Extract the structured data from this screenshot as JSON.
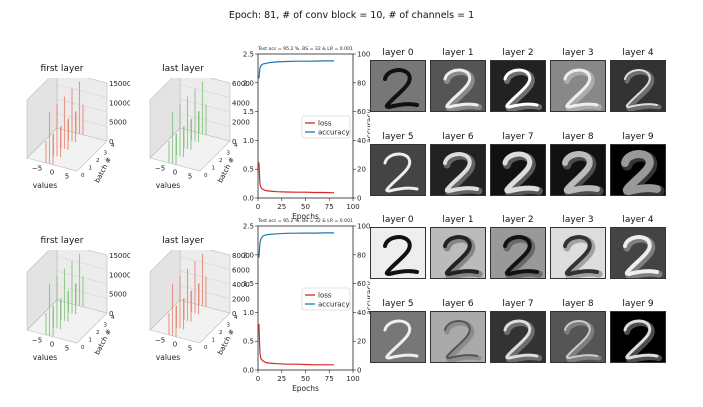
{
  "figure": {
    "title": "Epoch: 81, # of conv block = 10, # of channels = 1"
  },
  "rows": [
    {
      "hist_first": {
        "title": "first layer",
        "xlabel": "values",
        "ylabel": "batch #",
        "xticks": [
          "−5",
          "0",
          "5"
        ],
        "yticks": [
          "0",
          "1",
          "2",
          "3",
          "4"
        ],
        "zticks": [
          "15000",
          "10000",
          "5000",
          "0"
        ],
        "color": "#e8826f"
      },
      "hist_last": {
        "title": "last layer",
        "xlabel": "values",
        "ylabel": "batch #",
        "xticks": [
          "−5",
          "0",
          "5"
        ],
        "yticks": [
          "0",
          "1",
          "2",
          "3",
          "4"
        ],
        "zticks": [
          "6000",
          "4000",
          "2000",
          "0"
        ],
        "color": "#7fc27a"
      },
      "tiles_top_labels": [
        "layer 0",
        "layer 1",
        "layer 2",
        "layer 3",
        "layer 4"
      ],
      "tiles_bottom_labels": [
        "layer 5",
        "layer 6",
        "layer 7",
        "layer 8",
        "layer 9"
      ]
    },
    {
      "hist_first": {
        "title": "first layer",
        "xlabel": "values",
        "ylabel": "batch #",
        "xticks": [
          "−5",
          "0",
          "5"
        ],
        "yticks": [
          "0",
          "1",
          "2",
          "3",
          "4"
        ],
        "zticks": [
          "15000",
          "10000",
          "5000",
          "0"
        ],
        "color": "#7fc27a"
      },
      "hist_last": {
        "title": "last layer",
        "xlabel": "values",
        "ylabel": "batch #",
        "xticks": [
          "−5",
          "0",
          "5"
        ],
        "yticks": [
          "0",
          "1",
          "2",
          "3",
          "4"
        ],
        "zticks": [
          "8000",
          "6000",
          "4000",
          "2000",
          "0"
        ],
        "color": "#e8826f"
      },
      "tiles_top_labels": [
        "layer 0",
        "layer 1",
        "layer 2",
        "layer 3",
        "layer 4"
      ],
      "tiles_bottom_labels": [
        "layer 5",
        "layer 6",
        "layer 7",
        "layer 8",
        "layer 9"
      ]
    }
  ],
  "chart_data": [
    {
      "type": "line",
      "title": "Test acc = 95.2 %, BS = 32 & LR = 0.001",
      "xlabel": "Epochs",
      "ylabel": "",
      "ylabel_right": "accuracy",
      "xlim": [
        0,
        100
      ],
      "ylim": [
        0,
        2.5
      ],
      "ylim_right": [
        0,
        100
      ],
      "xticks": [
        0,
        25,
        50,
        75,
        100
      ],
      "yticks": [
        0.0,
        0.5,
        1.0,
        1.5,
        2.0,
        2.5
      ],
      "yticks_right": [
        0,
        20,
        40,
        60,
        80,
        100
      ],
      "legend": "center-right",
      "series": [
        {
          "name": "loss",
          "axis": "left",
          "color": "#d62728",
          "x": [
            1,
            2,
            3,
            5,
            8,
            12,
            20,
            30,
            40,
            50,
            60,
            70,
            80
          ],
          "y": [
            0.62,
            0.25,
            0.18,
            0.15,
            0.13,
            0.12,
            0.11,
            0.105,
            0.1,
            0.1,
            0.095,
            0.095,
            0.09
          ]
        },
        {
          "name": "accuracy",
          "axis": "right",
          "color": "#1f77b4",
          "x": [
            1,
            2,
            3,
            5,
            8,
            12,
            20,
            30,
            40,
            50,
            60,
            70,
            80
          ],
          "y": [
            83,
            90,
            92,
            93,
            93.5,
            94,
            94.5,
            94.8,
            95,
            95,
            95.1,
            95.2,
            95.2
          ]
        }
      ]
    },
    {
      "type": "line",
      "title": "Test acc = 95.2 %, BS = 32 & LR = 0.001",
      "xlabel": "Epochs",
      "ylabel": "",
      "ylabel_right": "accuracy",
      "xlim": [
        0,
        100
      ],
      "ylim": [
        0,
        2.5
      ],
      "ylim_right": [
        0,
        100
      ],
      "xticks": [
        0,
        25,
        50,
        75,
        100
      ],
      "yticks": [
        0.0,
        0.5,
        1.0,
        1.5,
        2.0,
        2.5
      ],
      "yticks_right": [
        0,
        20,
        40,
        60,
        80,
        100
      ],
      "legend": "center-right",
      "series": [
        {
          "name": "loss",
          "axis": "left",
          "color": "#d62728",
          "x": [
            1,
            2,
            3,
            5,
            8,
            12,
            20,
            30,
            40,
            50,
            60,
            70,
            80
          ],
          "y": [
            0.8,
            0.3,
            0.2,
            0.16,
            0.13,
            0.12,
            0.11,
            0.1,
            0.1,
            0.095,
            0.09,
            0.09,
            0.09
          ]
        },
        {
          "name": "accuracy",
          "axis": "right",
          "color": "#1f77b4",
          "x": [
            1,
            2,
            3,
            5,
            8,
            12,
            20,
            30,
            40,
            50,
            60,
            70,
            80
          ],
          "y": [
            78,
            88,
            91,
            93,
            93.8,
            94.2,
            94.6,
            94.9,
            95,
            95.1,
            95.1,
            95.2,
            95.2
          ]
        }
      ]
    }
  ]
}
